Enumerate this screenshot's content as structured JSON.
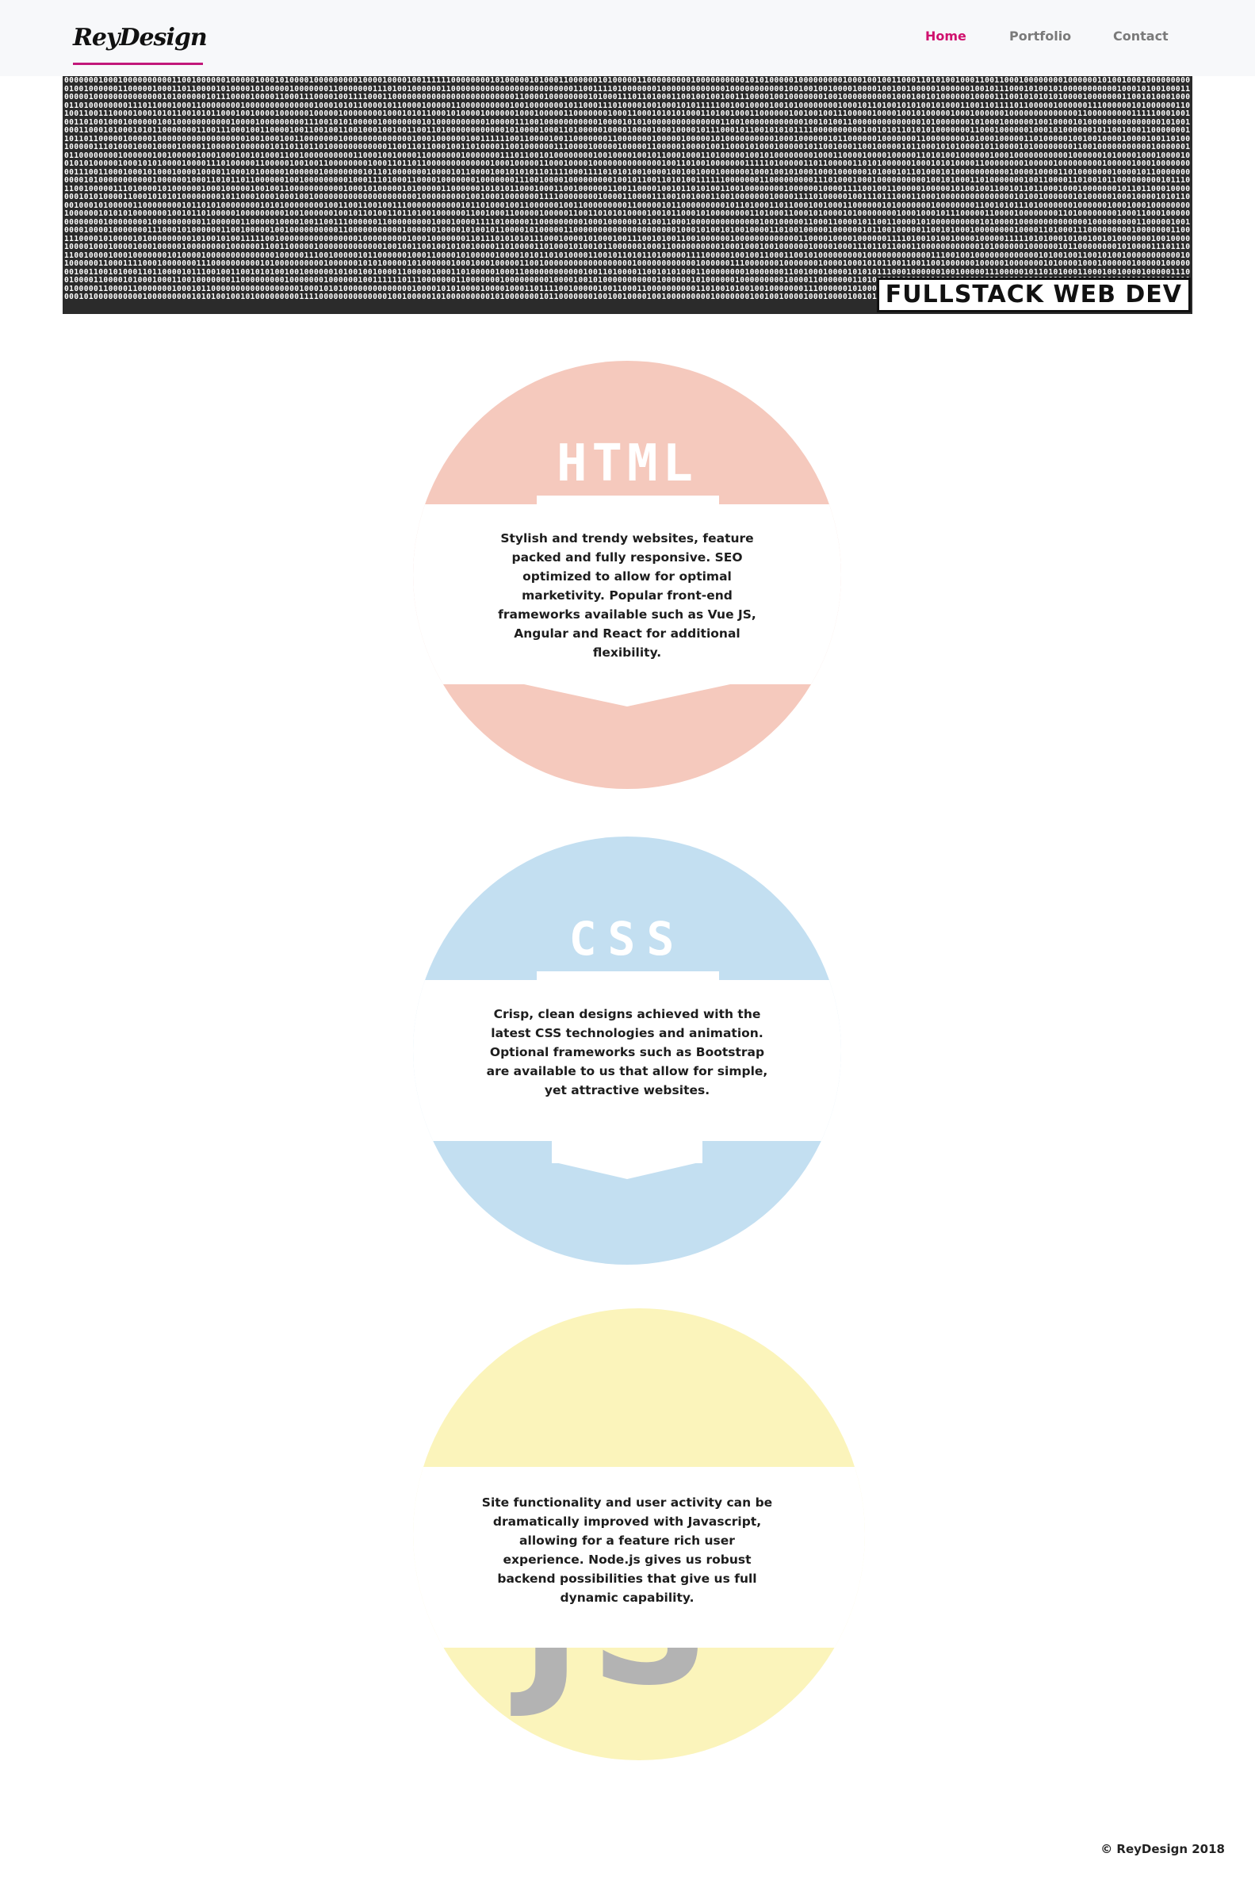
{
  "header": {
    "logo_text": "ReyDesign",
    "nav": [
      {
        "label": "Home",
        "active": true
      },
      {
        "label": "Portfolio",
        "active": false
      },
      {
        "label": "Contact",
        "active": false
      }
    ]
  },
  "hero": {
    "tagline": "FULLSTACK WEB DEV"
  },
  "services": [
    {
      "badge": "HTML",
      "color": "#f5c9bd",
      "description": "Stylish and trendy websites, feature packed and fully responsive. SEO optimized to allow for optimal marketivity. Popular front-end frameworks available such as Vue JS, Angular and React for additional flexibility."
    },
    {
      "badge": "CSS",
      "color": "#c3dff1",
      "description": "Crisp, clean designs achieved with the latest CSS technologies and animation. Optional frameworks such as Bootstrap are available to us that allow for simple, yet attractive websites."
    },
    {
      "badge": "JS",
      "color": "#fbf4bb",
      "description": "Site functionality and user activity can be dramatically improved with Javascript, allowing for a feature rich user experience. Node.js gives us robust backend possibilities that give us full dynamic capability."
    }
  ],
  "footer": {
    "copyright": "© ReyDesign 2018"
  },
  "colors": {
    "accent": "#d0116e",
    "logo_underline": "#c2187a",
    "hero_bg": "#2b2b2b"
  }
}
